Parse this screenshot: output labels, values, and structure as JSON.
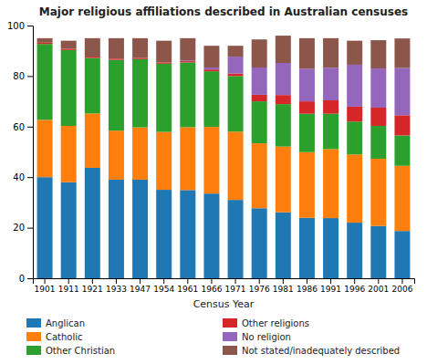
{
  "chart_data": {
    "type": "bar",
    "stacked": true,
    "title": "Major religious affiliations described in Australian censuses",
    "xlabel": "Census Year",
    "categories": [
      "1901",
      "1911",
      "1921",
      "1933",
      "1947",
      "1954",
      "1961",
      "1966",
      "1971",
      "1976",
      "1981",
      "1986",
      "1991",
      "1996",
      "2001",
      "2006"
    ],
    "series": [
      {
        "name": "Anglican",
        "values": [
          40.0,
          38.0,
          43.7,
          39.0,
          39.0,
          35.0,
          34.9,
          33.5,
          31.0,
          27.7,
          26.1,
          23.9,
          23.8,
          22.0,
          20.7,
          18.7
        ]
      },
      {
        "name": "Catholic",
        "values": [
          22.7,
          22.3,
          21.5,
          19.4,
          20.7,
          22.9,
          24.9,
          26.4,
          27.0,
          25.7,
          26.0,
          26.0,
          27.3,
          27.0,
          26.6,
          25.8
        ]
      },
      {
        "name": "Other Christian",
        "values": [
          30.0,
          30.0,
          22.0,
          28.0,
          27.0,
          27.0,
          25.6,
          22.0,
          22.0,
          16.6,
          16.8,
          15.2,
          14.0,
          13.0,
          13.0,
          12.0
        ]
      },
      {
        "name": "Other religions",
        "values": [
          0.5,
          0.5,
          0.5,
          0.5,
          0.5,
          0.5,
          0.5,
          0.7,
          1.0,
          2.6,
          3.6,
          4.9,
          5.3,
          5.9,
          7.2,
          8.0
        ]
      },
      {
        "name": "No religion",
        "values": [
          0.0,
          0.0,
          0.0,
          0.0,
          0.0,
          0.0,
          0.3,
          0.8,
          6.7,
          10.8,
          12.7,
          12.9,
          12.9,
          16.6,
          15.5,
          18.7
        ]
      },
      {
        "name": "Not stated/inadequately described",
        "values": [
          1.8,
          3.2,
          7.3,
          8.1,
          7.8,
          8.6,
          8.8,
          8.6,
          4.3,
          11.1,
          10.8,
          12.1,
          11.7,
          9.5,
          11.2,
          11.7
        ]
      }
    ],
    "ylim": [
      0,
      100
    ],
    "yticks": [
      0,
      20,
      40,
      60,
      80,
      100
    ],
    "grid": false
  }
}
